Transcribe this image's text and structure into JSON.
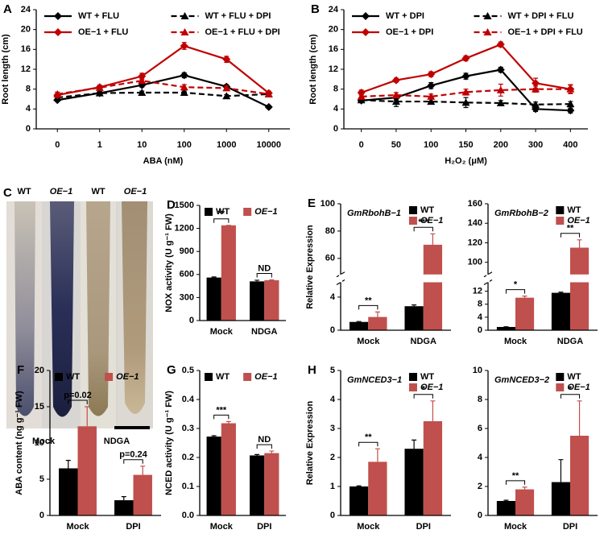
{
  "chart_data": [
    {
      "type": "line",
      "panel": "A",
      "x_label": "ABA (nM)",
      "y_label": "Root length (cm)",
      "categories": [
        "0",
        "1",
        "10",
        "100",
        "1000",
        "10000"
      ],
      "ylim": [
        0,
        24
      ],
      "yticks": [
        0,
        4,
        8,
        12,
        16,
        20,
        24
      ],
      "series": [
        {
          "name": "WT + FLU",
          "color": "#000000",
          "dashed": false,
          "values": [
            5.8,
            7.2,
            8.8,
            10.8,
            8.5,
            4.4
          ],
          "errors": [
            0.3,
            0.3,
            0.4,
            0.5,
            0.4,
            0.3
          ]
        },
        {
          "name": "WT + FLU + DPI",
          "color": "#000000",
          "dashed": true,
          "values": [
            6.3,
            7.2,
            7.3,
            7.3,
            6.6,
            7.0
          ],
          "errors": [
            0.3,
            0.3,
            0.3,
            0.3,
            0.3,
            0.3
          ]
        },
        {
          "name": "OE−1 + FLU",
          "color": "#c00000",
          "dashed": false,
          "values": [
            6.8,
            8.4,
            10.6,
            16.7,
            14.0,
            7.2
          ],
          "errors": [
            0.3,
            0.4,
            0.6,
            0.7,
            0.6,
            0.4
          ]
        },
        {
          "name": "OE−1 + FLU + DPI",
          "color": "#c00000",
          "dashed": true,
          "values": [
            7.0,
            8.3,
            9.7,
            8.4,
            8.2,
            7.0
          ],
          "errors": [
            0.4,
            0.3,
            0.5,
            0.5,
            0.4,
            0.4
          ]
        }
      ]
    },
    {
      "type": "line",
      "panel": "B",
      "x_label": "H₂O₂ (μM)",
      "y_label": "Root length (cm)",
      "categories": [
        "0",
        "50",
        "100",
        "150",
        "200",
        "300",
        "400"
      ],
      "ylim": [
        0,
        24
      ],
      "yticks": [
        0,
        4,
        8,
        12,
        16,
        20,
        24
      ],
      "series": [
        {
          "name": "WT + DPI",
          "color": "#000000",
          "dashed": false,
          "values": [
            5.7,
            6.3,
            8.7,
            10.6,
            11.9,
            4.0,
            3.7
          ],
          "errors": [
            0.4,
            0.5,
            0.6,
            0.6,
            0.5,
            0.5,
            0.5
          ]
        },
        {
          "name": "WT + DPI + FLU",
          "color": "#000000",
          "dashed": true,
          "values": [
            5.8,
            5.5,
            5.5,
            5.3,
            5.2,
            4.9,
            5.0
          ],
          "errors": [
            0.4,
            1.0,
            0.5,
            1.0,
            0.5,
            0.5,
            0.5
          ]
        },
        {
          "name": "OE−1 + DPI",
          "color": "#c00000",
          "dashed": false,
          "values": [
            7.3,
            9.8,
            11.0,
            14.2,
            17.0,
            9.2,
            8.0
          ],
          "errors": [
            0.5,
            0.4,
            0.5,
            0.5,
            0.5,
            1.0,
            0.8
          ]
        },
        {
          "name": "OE−1 + DPI + FLU",
          "color": "#c00000",
          "dashed": true,
          "values": [
            6.5,
            6.8,
            6.5,
            7.4,
            7.8,
            8.0,
            8.0
          ],
          "errors": [
            0.4,
            0.5,
            0.5,
            0.6,
            1.2,
            0.6,
            0.9
          ]
        }
      ]
    },
    {
      "type": "bar",
      "panel": "D",
      "y_label": "NOX activity (U g⁻¹ FW)",
      "categories": [
        "Mock",
        "NDGA"
      ],
      "ylim": [
        0,
        1500
      ],
      "yticks": [
        0,
        300,
        600,
        900,
        1200,
        1500
      ],
      "series": [
        {
          "name": "WT",
          "color": "#000000",
          "values": [
            560,
            510
          ],
          "errors": [
            8,
            15
          ]
        },
        {
          "name": "OE−1",
          "color": "#c0504d",
          "values": [
            1240,
            525
          ],
          "errors": [
            0,
            5
          ]
        }
      ],
      "significance": [
        "**",
        "ND"
      ]
    },
    {
      "type": "bar",
      "panel": "E",
      "title": "GmRbohB−1",
      "y_label": "Relative Expression",
      "categories": [
        "Mock",
        "NDGA"
      ],
      "ylim": [
        0,
        100
      ],
      "ybreak": [
        5.5,
        50
      ],
      "yticks": [
        0,
        4,
        60,
        80,
        100
      ],
      "series": [
        {
          "name": "WT",
          "color": "#000000",
          "values": [
            1.0,
            2.9
          ],
          "errors": [
            0.05,
            0.15
          ]
        },
        {
          "name": "OE−1",
          "color": "#c0504d",
          "values": [
            1.6,
            70
          ],
          "errors": [
            0.6,
            8
          ]
        }
      ],
      "significance": [
        "**",
        "***"
      ]
    },
    {
      "type": "bar",
      "title": "GmRbohB−2",
      "categories": [
        "Mock",
        "NDGA"
      ],
      "ylim": [
        0,
        160
      ],
      "ybreak": [
        14,
        90
      ],
      "yticks": [
        0,
        4,
        8,
        12,
        100,
        120,
        140,
        160
      ],
      "series": [
        {
          "name": "WT",
          "color": "#000000",
          "values": [
            1.0,
            11.5
          ],
          "errors": [
            0.05,
            0.2
          ]
        },
        {
          "name": "OE−1",
          "color": "#c0504d",
          "values": [
            10.0,
            115
          ],
          "errors": [
            0.5,
            8
          ]
        }
      ],
      "significance": [
        "*",
        "**"
      ]
    },
    {
      "type": "bar",
      "panel": "F",
      "y_label": "ABA content (ng g⁻¹ FW)",
      "categories": [
        "Mock",
        "DPI"
      ],
      "ylim": [
        0,
        20
      ],
      "yticks": [
        0,
        5,
        10,
        15,
        20
      ],
      "series": [
        {
          "name": "WT",
          "color": "#000000",
          "values": [
            6.5,
            2.1
          ],
          "errors": [
            1.1,
            0.5
          ]
        },
        {
          "name": "OE−1",
          "color": "#c0504d",
          "values": [
            12.3,
            5.6
          ],
          "errors": [
            2.7,
            1.2
          ]
        }
      ],
      "significance": [
        "p=0.02",
        "p=0.24"
      ]
    },
    {
      "type": "bar",
      "panel": "G",
      "y_label": "NCED activity (U g⁻¹ FW)",
      "categories": [
        "Mock",
        "DPI"
      ],
      "ylim": [
        0,
        0.5
      ],
      "yticks": [
        {
          "value": 0,
          "label": "0.0"
        },
        0.1,
        0.2,
        0.3,
        0.4,
        0.5
      ],
      "series": [
        {
          "name": "WT",
          "color": "#000000",
          "values": [
            0.272,
            0.207
          ],
          "errors": [
            0.003,
            0.003
          ]
        },
        {
          "name": "OE−1",
          "color": "#c0504d",
          "values": [
            0.318,
            0.215
          ],
          "errors": [
            0.006,
            0.007
          ]
        }
      ],
      "significance": [
        "***",
        "ND"
      ]
    },
    {
      "type": "bar",
      "panel": "H",
      "title": "GmNCED3−1",
      "y_label": "Relative Expression",
      "categories": [
        "Mock",
        "DPI"
      ],
      "ylim": [
        0,
        5
      ],
      "yticks": [
        0,
        1,
        2,
        3,
        4,
        5
      ],
      "series": [
        {
          "name": "WT",
          "color": "#000000",
          "values": [
            1.0,
            2.3
          ],
          "errors": [
            0.02,
            0.3
          ]
        },
        {
          "name": "OE−1",
          "color": "#c0504d",
          "values": [
            1.85,
            3.25
          ],
          "errors": [
            0.45,
            0.7
          ]
        }
      ],
      "significance": [
        "**",
        "*"
      ]
    },
    {
      "type": "bar",
      "title": "GmNCED3−2",
      "categories": [
        "Mock",
        "DPI"
      ],
      "ylim": [
        0,
        10
      ],
      "yticks": [
        0,
        2,
        4,
        6,
        8,
        10
      ],
      "series": [
        {
          "name": "WT",
          "color": "#000000",
          "values": [
            1.0,
            2.3
          ],
          "errors": [
            0.05,
            1.55
          ]
        },
        {
          "name": "OE−1",
          "color": "#c0504d",
          "values": [
            1.8,
            5.5
          ],
          "errors": [
            0.15,
            2.4
          ]
        }
      ],
      "significance": [
        "**",
        "*"
      ]
    }
  ],
  "photo": {
    "panel": "C",
    "labels": [
      "WT",
      "OE−1",
      "WT",
      "OE−1"
    ],
    "groups": [
      "Mock",
      "NDGA"
    ]
  }
}
